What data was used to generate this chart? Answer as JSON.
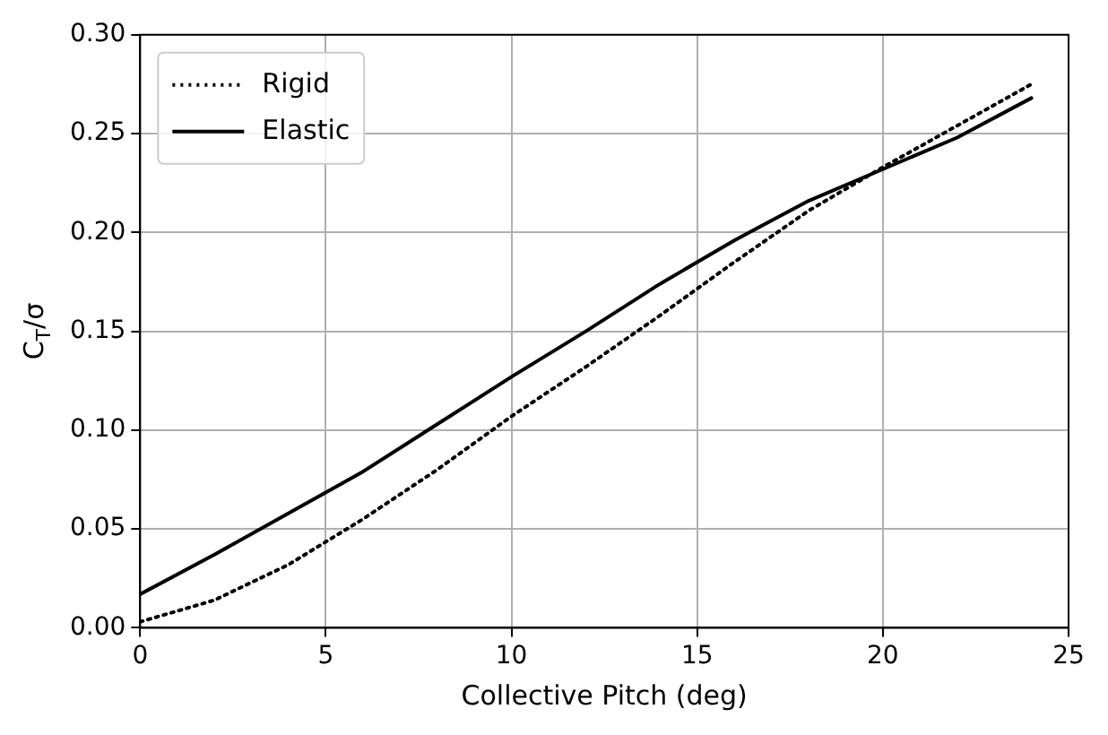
{
  "chart_data": {
    "type": "line",
    "xlabel": "Collective Pitch (deg)",
    "ylabel": "C$_{T}$/σ",
    "x": [
      0,
      2,
      4,
      6,
      8,
      10,
      12,
      14,
      16,
      18,
      20,
      22,
      24
    ],
    "series": [
      {
        "name": "Rigid",
        "color": "#000000",
        "line_style": "dotted",
        "values": [
          0.003,
          0.014,
          0.032,
          0.055,
          0.08,
          0.107,
          0.132,
          0.158,
          0.185,
          0.211,
          0.233,
          0.254,
          0.275
        ]
      },
      {
        "name": "Elastic",
        "color": "#000000",
        "line_style": "solid",
        "values": [
          0.017,
          0.037,
          0.058,
          0.079,
          0.103,
          0.127,
          0.15,
          0.174,
          0.196,
          0.216,
          0.232,
          0.248,
          0.268
        ]
      }
    ],
    "xlim": [
      0,
      25
    ],
    "xticks": [
      0,
      5,
      10,
      15,
      20,
      25
    ],
    "ylim": [
      0,
      0.3
    ],
    "yticks": [
      {
        "value": 0,
        "label": "0.00"
      },
      0.05,
      {
        "value": 0.1,
        "label": "0.10"
      },
      0.15,
      {
        "value": 0.2,
        "label": "0.20"
      },
      0.25,
      {
        "value": 0.3,
        "label": "0.30"
      }
    ],
    "grid": true,
    "legend": "top left",
    "marker": "none"
  }
}
